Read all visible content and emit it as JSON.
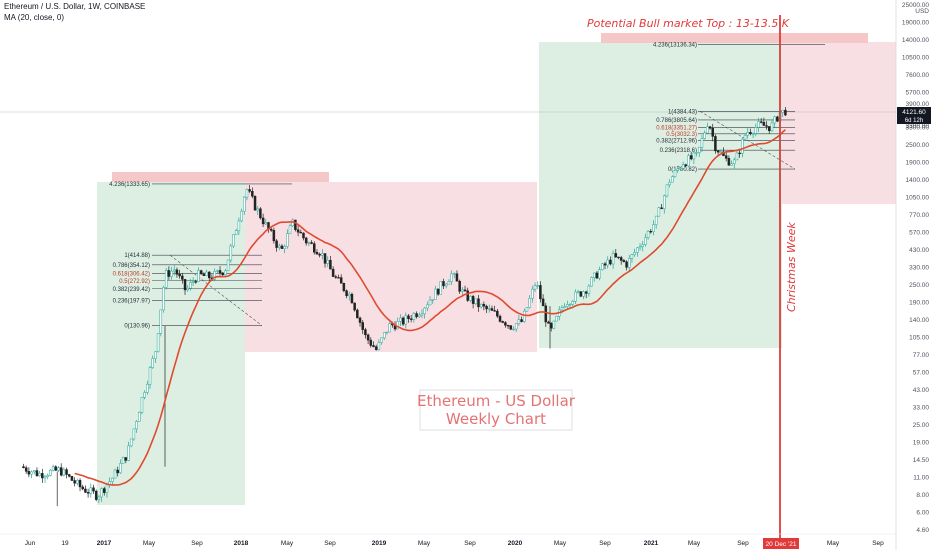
{
  "header": {
    "symbol_line": "Ethereum / U.S. Dollar, 1W, COINBASE",
    "indicator_line": "MA (20, close, 0)"
  },
  "colors": {
    "up_candle": "#26a69a",
    "down_candle": "#222222",
    "ma_line": "#e04a2f",
    "bull_zone": "#dcefe2",
    "bear_zone": "#f8dfe3",
    "target_zone": "#f6c7c7",
    "christmas_line": "#e03a3a",
    "price_badge": "#131722"
  },
  "chart_data": {
    "type": "candlestick",
    "title": "Ethereum - US Dollar Weekly Chart",
    "scale": "log",
    "price_unit": "USD",
    "y_ticks": [
      "25000.00",
      "19000.00",
      "14000.00",
      "10500.00",
      "7600.00",
      "5700.00",
      "4300.00",
      "3300.00",
      "2500.00",
      "1900.00",
      "1400.00",
      "1050.00",
      "770.00",
      "570.00",
      "430.00",
      "330.00",
      "250.00",
      "190.00",
      "140.00",
      "105.00",
      "77.00",
      "57.00",
      "43.00",
      "33.00",
      "25.00",
      "19.00",
      "14.50",
      "11.00",
      "8.00",
      "6.00",
      "4.60"
    ],
    "x_ticks": [
      "Jun",
      "19",
      "2017",
      "May",
      "Sep",
      "2018",
      "May",
      "Sep",
      "2019",
      "May",
      "Sep",
      "2020",
      "May",
      "Sep",
      "2021",
      "May",
      "Sep",
      "20 Dec '21",
      "Sep"
    ],
    "x_ticks_extra": [
      "May"
    ],
    "last_price": "4121.60",
    "countdown": "6d 12h",
    "price_scale_labels": [
      "3900.00",
      "3300.00"
    ],
    "series_name": "MA (20, close, 0)",
    "fib_2017": [
      {
        "label": "1(414.88)",
        "price": 414.88
      },
      {
        "label": "0.786(354.12)",
        "price": 354.12
      },
      {
        "label": "0.618(306.42)",
        "price": 306.42
      },
      {
        "label": "0.5(272.92)",
        "price": 272.92
      },
      {
        "label": "0.382(239.42)",
        "price": 239.42
      },
      {
        "label": "0.236(197.97)",
        "price": 197.97
      },
      {
        "label": "0(130.96)",
        "price": 130.96
      },
      {
        "label": "4.236(1333.65)",
        "price": 1333.65
      }
    ],
    "fib_2021": [
      {
        "label": "1(4384.43)",
        "price": 4384.43
      },
      {
        "label": "0.786(3805.64)",
        "price": 3805.64
      },
      {
        "label": "0.618(3351.27)",
        "price": 3351.27
      },
      {
        "label": "0.5(3032.3)",
        "price": 3032.3
      },
      {
        "label": "0.382(2712.96)",
        "price": 2712.96
      },
      {
        "label": "0.236(2318.6)",
        "price": 2318.6
      },
      {
        "label": "0(1700.82)",
        "price": 1700.82
      },
      {
        "label": "4.236(13136.34)",
        "price": 13136.34
      }
    ],
    "annotations": {
      "target": "Potential Bull market Top : 13-13.5 K",
      "christmas": "Christmas Week"
    }
  }
}
